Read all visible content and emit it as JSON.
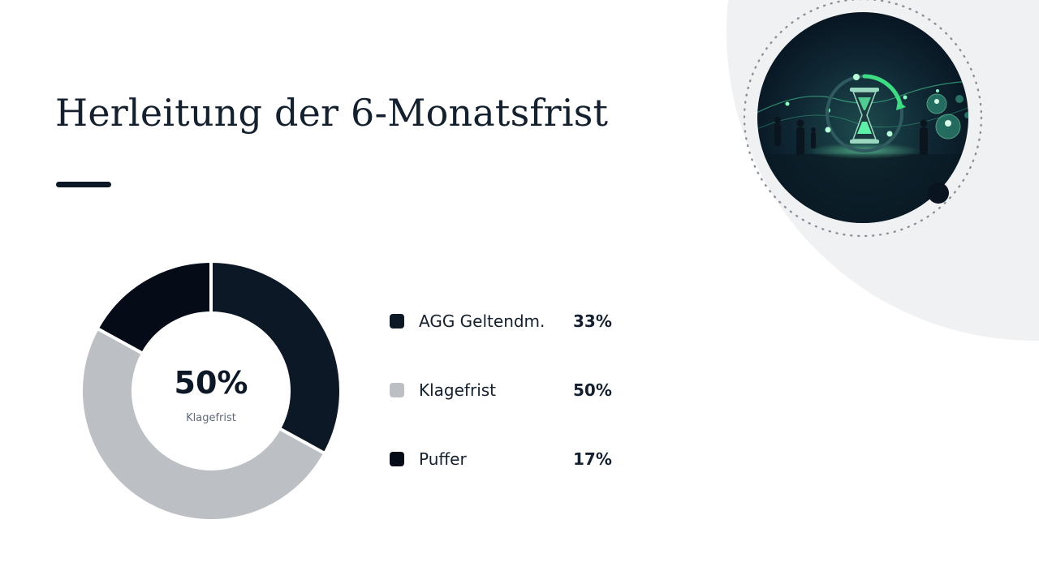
{
  "slide": {
    "title": "Herleitung der 6-Monatsfrist"
  },
  "colors": {
    "dark": "#0d1826",
    "darker": "#050b17",
    "gray": "#bcc0c4",
    "accent_green": "#3ddc84"
  },
  "illustration": {
    "icon": "hourglass-timeline-icon"
  },
  "chart_data": {
    "type": "pie",
    "donut": true,
    "categories": [
      "AGG Geltendm.",
      "Klagefrist",
      "Puffer"
    ],
    "values": [
      33,
      50,
      17
    ],
    "value_labels": [
      "33%",
      "50%",
      "17%"
    ],
    "colors": [
      "#0d1826",
      "#bcc0c4",
      "#050b17"
    ],
    "center": {
      "value": "50%",
      "label": "Klagefrist"
    },
    "legend_position": "right"
  }
}
